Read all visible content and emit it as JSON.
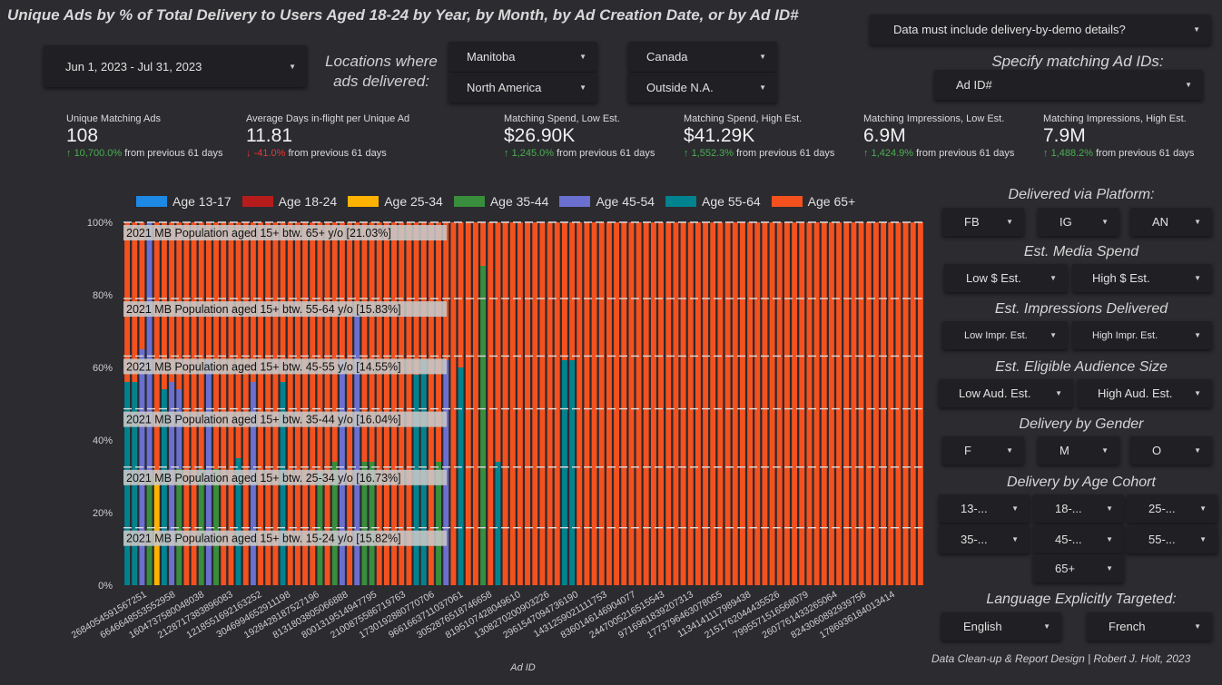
{
  "title": "Unique Ads by % of Total Delivery to Users Aged 18-24 by Year, by Month, by Ad Creation Date, or by Ad ID#",
  "filters": {
    "date_range": "Jun 1, 2023 - Jul 31, 2023",
    "locations_label": "Locations where ads delivered:",
    "loc_manitoba": "Manitoba",
    "loc_canada": "Canada",
    "loc_north_america": "North America",
    "loc_outside_na": "Outside N.A.",
    "demo_details": "Data must include delivery-by-demo details?",
    "ad_ids_label": "Specify matching Ad IDs:",
    "ad_id": "Ad ID#"
  },
  "kpis": [
    {
      "label": "Unique Matching Ads",
      "value": "108",
      "change": "10,700.0%",
      "dir": "up",
      "suffix": "from previous 61 days"
    },
    {
      "label": "Average Days in-flight per Unique Ad",
      "value": "11.81",
      "change": "-41.0%",
      "dir": "down",
      "suffix": "from previous 61 days"
    },
    {
      "label": "Matching Spend, Low Est.",
      "value": "$26.90K",
      "change": "1,245.0%",
      "dir": "up",
      "suffix": "from previous 61 days"
    },
    {
      "label": "Matching Spend, High Est.",
      "value": "$41.29K",
      "change": "1,552.3%",
      "dir": "up",
      "suffix": "from previous 61 days"
    },
    {
      "label": "Matching Impressions, Low Est.",
      "value": "6.9M",
      "change": "1,424.9%",
      "dir": "up",
      "suffix": "from previous 61 days"
    },
    {
      "label": "Matching Impressions, High Est.",
      "value": "7.9M",
      "change": "1,488.2%",
      "dir": "up",
      "suffix": "from previous 61 days"
    }
  ],
  "side": {
    "platform_label": "Delivered via Platform:",
    "fb": "FB",
    "ig": "IG",
    "an": "AN",
    "spend_label": "Est. Media Spend",
    "low_spend": "Low $ Est.",
    "high_spend": "High $ Est.",
    "impr_label": "Est. Impressions Delivered",
    "low_impr": "Low Impr. Est.",
    "high_impr": "High Impr. Est.",
    "aud_label": "Est. Eligible Audience Size",
    "low_aud": "Low Aud. Est.",
    "high_aud": "High Aud. Est.",
    "gender_label": "Delivery by Gender",
    "g_f": "F",
    "g_m": "M",
    "g_o": "O",
    "age_label": "Delivery by Age Cohort",
    "a13": "13-...",
    "a18": "18-...",
    "a25": "25-...",
    "a35": "35-...",
    "a45": "45-...",
    "a55": "55-...",
    "a65": "65+",
    "lang_label": "Language Explicitly Targeted:",
    "english": "English",
    "french": "French"
  },
  "credit": "Data Clean-up & Report Design | Robert J. Holt, 2023",
  "colors": {
    "age13": "#1e88e5",
    "age18": "#b71c1c",
    "age25": "#ffb300",
    "age35": "#388e3c",
    "age45": "#6a6fd0",
    "age55": "#00838f",
    "age65": "#f4511e"
  },
  "chart_data": {
    "type": "bar",
    "stacked": true,
    "normalized": true,
    "xlabel": "Ad ID",
    "ylabel": "",
    "ylim": [
      0,
      100
    ],
    "y_ticks": [
      "0%",
      "20%",
      "40%",
      "60%",
      "80%",
      "100%"
    ],
    "legend_position": "top",
    "series_names": [
      "Age 13-17",
      "Age 18-24",
      "Age 25-34",
      "Age 35-44",
      "Age 45-54",
      "Age 55-64",
      "Age 65+"
    ],
    "x_tick_labels": [
      "2684054591567251",
      "6646648553552958",
      "1604737580048038",
      "2128717383896083",
      "1218551692163252",
      "3046994652911198",
      "1928428187527196",
      "8131803805066888",
      "8001319514947795",
      "2100875586719763",
      "1730192880770706",
      "9661663711037061",
      "3052876518746658",
      "8195107428049610",
      "1308270200903226",
      "2961547094736190",
      "1431259021111753",
      "8360146146904077",
      "2447005216515543",
      "9716961839207313",
      "1773796463078055",
      "1134141117989438",
      "2151762044435526",
      "7995571516568079",
      "2607761433265064",
      "8243060892939756",
      "1786936184013414"
    ],
    "reference_lines": [
      {
        "label": "2021 MB Population aged 15+ btw. 65+ y/o [21.03%]",
        "value": 100.0
      },
      {
        "label": "2021 MB Population aged 15+ btw. 55-64 y/o [15.83%]",
        "value": 78.97
      },
      {
        "label": "2021 MB Population aged 15+ btw. 45-55 y/o [14.55%]",
        "value": 63.14
      },
      {
        "label": "2021 MB Population aged 15+ btw. 35-44 y/o [16.04%]",
        "value": 48.59
      },
      {
        "label": "2021 MB Population aged 15+ btw. 25-34 y/o [16.73%]",
        "value": 32.55
      },
      {
        "label": "2021 MB Population aged 15+ btw. 15-24 y/o [15.82%]",
        "value": 15.82
      }
    ],
    "bars": [
      [
        0,
        0,
        0,
        0,
        0,
        56,
        44
      ],
      [
        0,
        0,
        0,
        0,
        0,
        56,
        44
      ],
      [
        0,
        0,
        0,
        0,
        65,
        0,
        35
      ],
      [
        0,
        0,
        0,
        30,
        70,
        0,
        0
      ],
      [
        0,
        0,
        30,
        0,
        0,
        0,
        70
      ],
      [
        0,
        0,
        0,
        0,
        0,
        54,
        46
      ],
      [
        0,
        0,
        0,
        0,
        56,
        0,
        44
      ],
      [
        0,
        0,
        0,
        32,
        22,
        0,
        46
      ],
      [
        0,
        0,
        0,
        0,
        0,
        0,
        100
      ],
      [
        0,
        0,
        0,
        0,
        0,
        0,
        100
      ],
      [
        0,
        0,
        0,
        32,
        0,
        0,
        68
      ],
      [
        0,
        0,
        0,
        0,
        62,
        0,
        38
      ],
      [
        0,
        0,
        0,
        32,
        0,
        0,
        68
      ],
      [
        0,
        0,
        0,
        0,
        0,
        0,
        100
      ],
      [
        0,
        0,
        0,
        0,
        0,
        0,
        100
      ],
      [
        0,
        0,
        0,
        0,
        0,
        35,
        65
      ],
      [
        0,
        0,
        0,
        0,
        0,
        0,
        100
      ],
      [
        0,
        0,
        0,
        0,
        56,
        0,
        44
      ],
      [
        0,
        0,
        0,
        0,
        0,
        0,
        100
      ],
      [
        0,
        0,
        0,
        0,
        0,
        0,
        100
      ],
      [
        0,
        0,
        0,
        0,
        0,
        0,
        100
      ],
      [
        0,
        0,
        0,
        0,
        0,
        56,
        44
      ],
      [
        0,
        0,
        0,
        0,
        0,
        0,
        100
      ],
      [
        0,
        0,
        0,
        0,
        0,
        0,
        100
      ],
      [
        0,
        0,
        0,
        0,
        0,
        0,
        100
      ],
      [
        0,
        0,
        0,
        0,
        0,
        0,
        100
      ],
      [
        0,
        0,
        0,
        31,
        0,
        0,
        69
      ],
      [
        0,
        0,
        0,
        0,
        0,
        0,
        100
      ],
      [
        0,
        0,
        0,
        34,
        0,
        0,
        66
      ],
      [
        0,
        0,
        0,
        0,
        62,
        0,
        38
      ],
      [
        0,
        0,
        0,
        0,
        0,
        0,
        100
      ],
      [
        0,
        0,
        0,
        0,
        75,
        0,
        25
      ],
      [
        0,
        0,
        0,
        34,
        0,
        0,
        66
      ],
      [
        0,
        0,
        0,
        34,
        0,
        0,
        66
      ],
      [
        0,
        0,
        0,
        0,
        0,
        0,
        100
      ],
      [
        0,
        0,
        0,
        0,
        0,
        0,
        100
      ],
      [
        0,
        0,
        0,
        0,
        0,
        0,
        100
      ],
      [
        0,
        0,
        0,
        0,
        0,
        0,
        100
      ],
      [
        0,
        0,
        0,
        0,
        0,
        0,
        100
      ],
      [
        0,
        0,
        0,
        0,
        0,
        58,
        42
      ],
      [
        0,
        0,
        0,
        0,
        0,
        62,
        38
      ],
      [
        0,
        0,
        0,
        0,
        0,
        0,
        100
      ],
      [
        0,
        0,
        0,
        34,
        0,
        0,
        66
      ],
      [
        0,
        0,
        0,
        0,
        62,
        0,
        38
      ],
      [
        0,
        0,
        0,
        0,
        0,
        0,
        100
      ],
      [
        0,
        0,
        0,
        0,
        0,
        60,
        40
      ],
      [
        0,
        0,
        0,
        0,
        0,
        0,
        100
      ],
      [
        0,
        0,
        0,
        0,
        0,
        0,
        100
      ],
      [
        0,
        0,
        0,
        88,
        0,
        0,
        12
      ],
      [
        0,
        0,
        0,
        0,
        0,
        0,
        100
      ],
      [
        0,
        0,
        0,
        0,
        0,
        34,
        66
      ],
      [
        0,
        0,
        0,
        0,
        0,
        0,
        100
      ],
      [
        0,
        0,
        0,
        0,
        0,
        0,
        100
      ],
      [
        0,
        0,
        0,
        0,
        0,
        0,
        100
      ],
      [
        0,
        0,
        0,
        0,
        0,
        0,
        100
      ],
      [
        0,
        0,
        0,
        0,
        0,
        0,
        100
      ],
      [
        0,
        0,
        0,
        0,
        0,
        0,
        100
      ],
      [
        0,
        0,
        0,
        0,
        0,
        0,
        100
      ],
      [
        0,
        0,
        0,
        0,
        0,
        0,
        100
      ],
      [
        0,
        0,
        0,
        0,
        0,
        62,
        38
      ],
      [
        0,
        0,
        0,
        0,
        0,
        62,
        38
      ],
      [
        0,
        0,
        0,
        0,
        0,
        0,
        100
      ],
      [
        0,
        0,
        0,
        0,
        0,
        0,
        100
      ],
      [
        0,
        0,
        0,
        0,
        0,
        0,
        100
      ],
      [
        0,
        0,
        0,
        0,
        0,
        0,
        100
      ],
      [
        0,
        0,
        0,
        0,
        0,
        0,
        100
      ],
      [
        0,
        0,
        0,
        0,
        0,
        0,
        100
      ],
      [
        0,
        0,
        0,
        0,
        0,
        0,
        100
      ],
      [
        0,
        0,
        0,
        0,
        0,
        0,
        100
      ],
      [
        0,
        0,
        0,
        0,
        0,
        0,
        100
      ],
      [
        0,
        0,
        0,
        0,
        0,
        0,
        100
      ],
      [
        0,
        0,
        0,
        0,
        0,
        0,
        100
      ],
      [
        0,
        0,
        0,
        0,
        0,
        0,
        100
      ],
      [
        0,
        0,
        0,
        0,
        0,
        0,
        100
      ],
      [
        0,
        0,
        0,
        0,
        0,
        0,
        100
      ],
      [
        0,
        0,
        0,
        0,
        0,
        0,
        100
      ],
      [
        0,
        0,
        0,
        0,
        0,
        0,
        100
      ],
      [
        0,
        0,
        0,
        0,
        0,
        0,
        100
      ],
      [
        0,
        0,
        0,
        0,
        0,
        0,
        100
      ],
      [
        0,
        0,
        0,
        0,
        0,
        0,
        100
      ],
      [
        0,
        0,
        0,
        0,
        0,
        0,
        100
      ],
      [
        0,
        0,
        0,
        0,
        0,
        0,
        100
      ],
      [
        0,
        0,
        0,
        0,
        0,
        0,
        100
      ],
      [
        0,
        0,
        0,
        0,
        0,
        0,
        100
      ],
      [
        0,
        0,
        0,
        0,
        0,
        0,
        100
      ],
      [
        0,
        0,
        0,
        0,
        0,
        0,
        100
      ],
      [
        0,
        0,
        0,
        0,
        0,
        0,
        100
      ],
      [
        0,
        0,
        0,
        0,
        0,
        0,
        100
      ],
      [
        0,
        0,
        0,
        0,
        0,
        0,
        100
      ],
      [
        0,
        0,
        0,
        0,
        0,
        0,
        100
      ],
      [
        0,
        0,
        0,
        0,
        0,
        0,
        100
      ],
      [
        0,
        0,
        0,
        0,
        0,
        0,
        100
      ],
      [
        0,
        0,
        0,
        0,
        0,
        0,
        100
      ],
      [
        0,
        0,
        0,
        0,
        0,
        0,
        100
      ],
      [
        0,
        0,
        0,
        0,
        0,
        0,
        100
      ],
      [
        0,
        0,
        0,
        0,
        0,
        0,
        100
      ],
      [
        0,
        0,
        0,
        0,
        0,
        0,
        100
      ],
      [
        0,
        0,
        0,
        0,
        0,
        0,
        100
      ],
      [
        0,
        0,
        0,
        0,
        0,
        0,
        100
      ],
      [
        0,
        0,
        0,
        0,
        0,
        0,
        100
      ],
      [
        0,
        0,
        0,
        0,
        0,
        0,
        100
      ],
      [
        0,
        0,
        0,
        0,
        0,
        0,
        100
      ],
      [
        0,
        0,
        0,
        0,
        0,
        0,
        100
      ],
      [
        0,
        0,
        0,
        0,
        0,
        0,
        100
      ],
      [
        0,
        0,
        0,
        0,
        0,
        0,
        100
      ],
      [
        0,
        0,
        0,
        0,
        0,
        0,
        100
      ],
      [
        0,
        0,
        0,
        0,
        0,
        0,
        100
      ],
      [
        0,
        0,
        0,
        0,
        0,
        0,
        100
      ]
    ]
  }
}
